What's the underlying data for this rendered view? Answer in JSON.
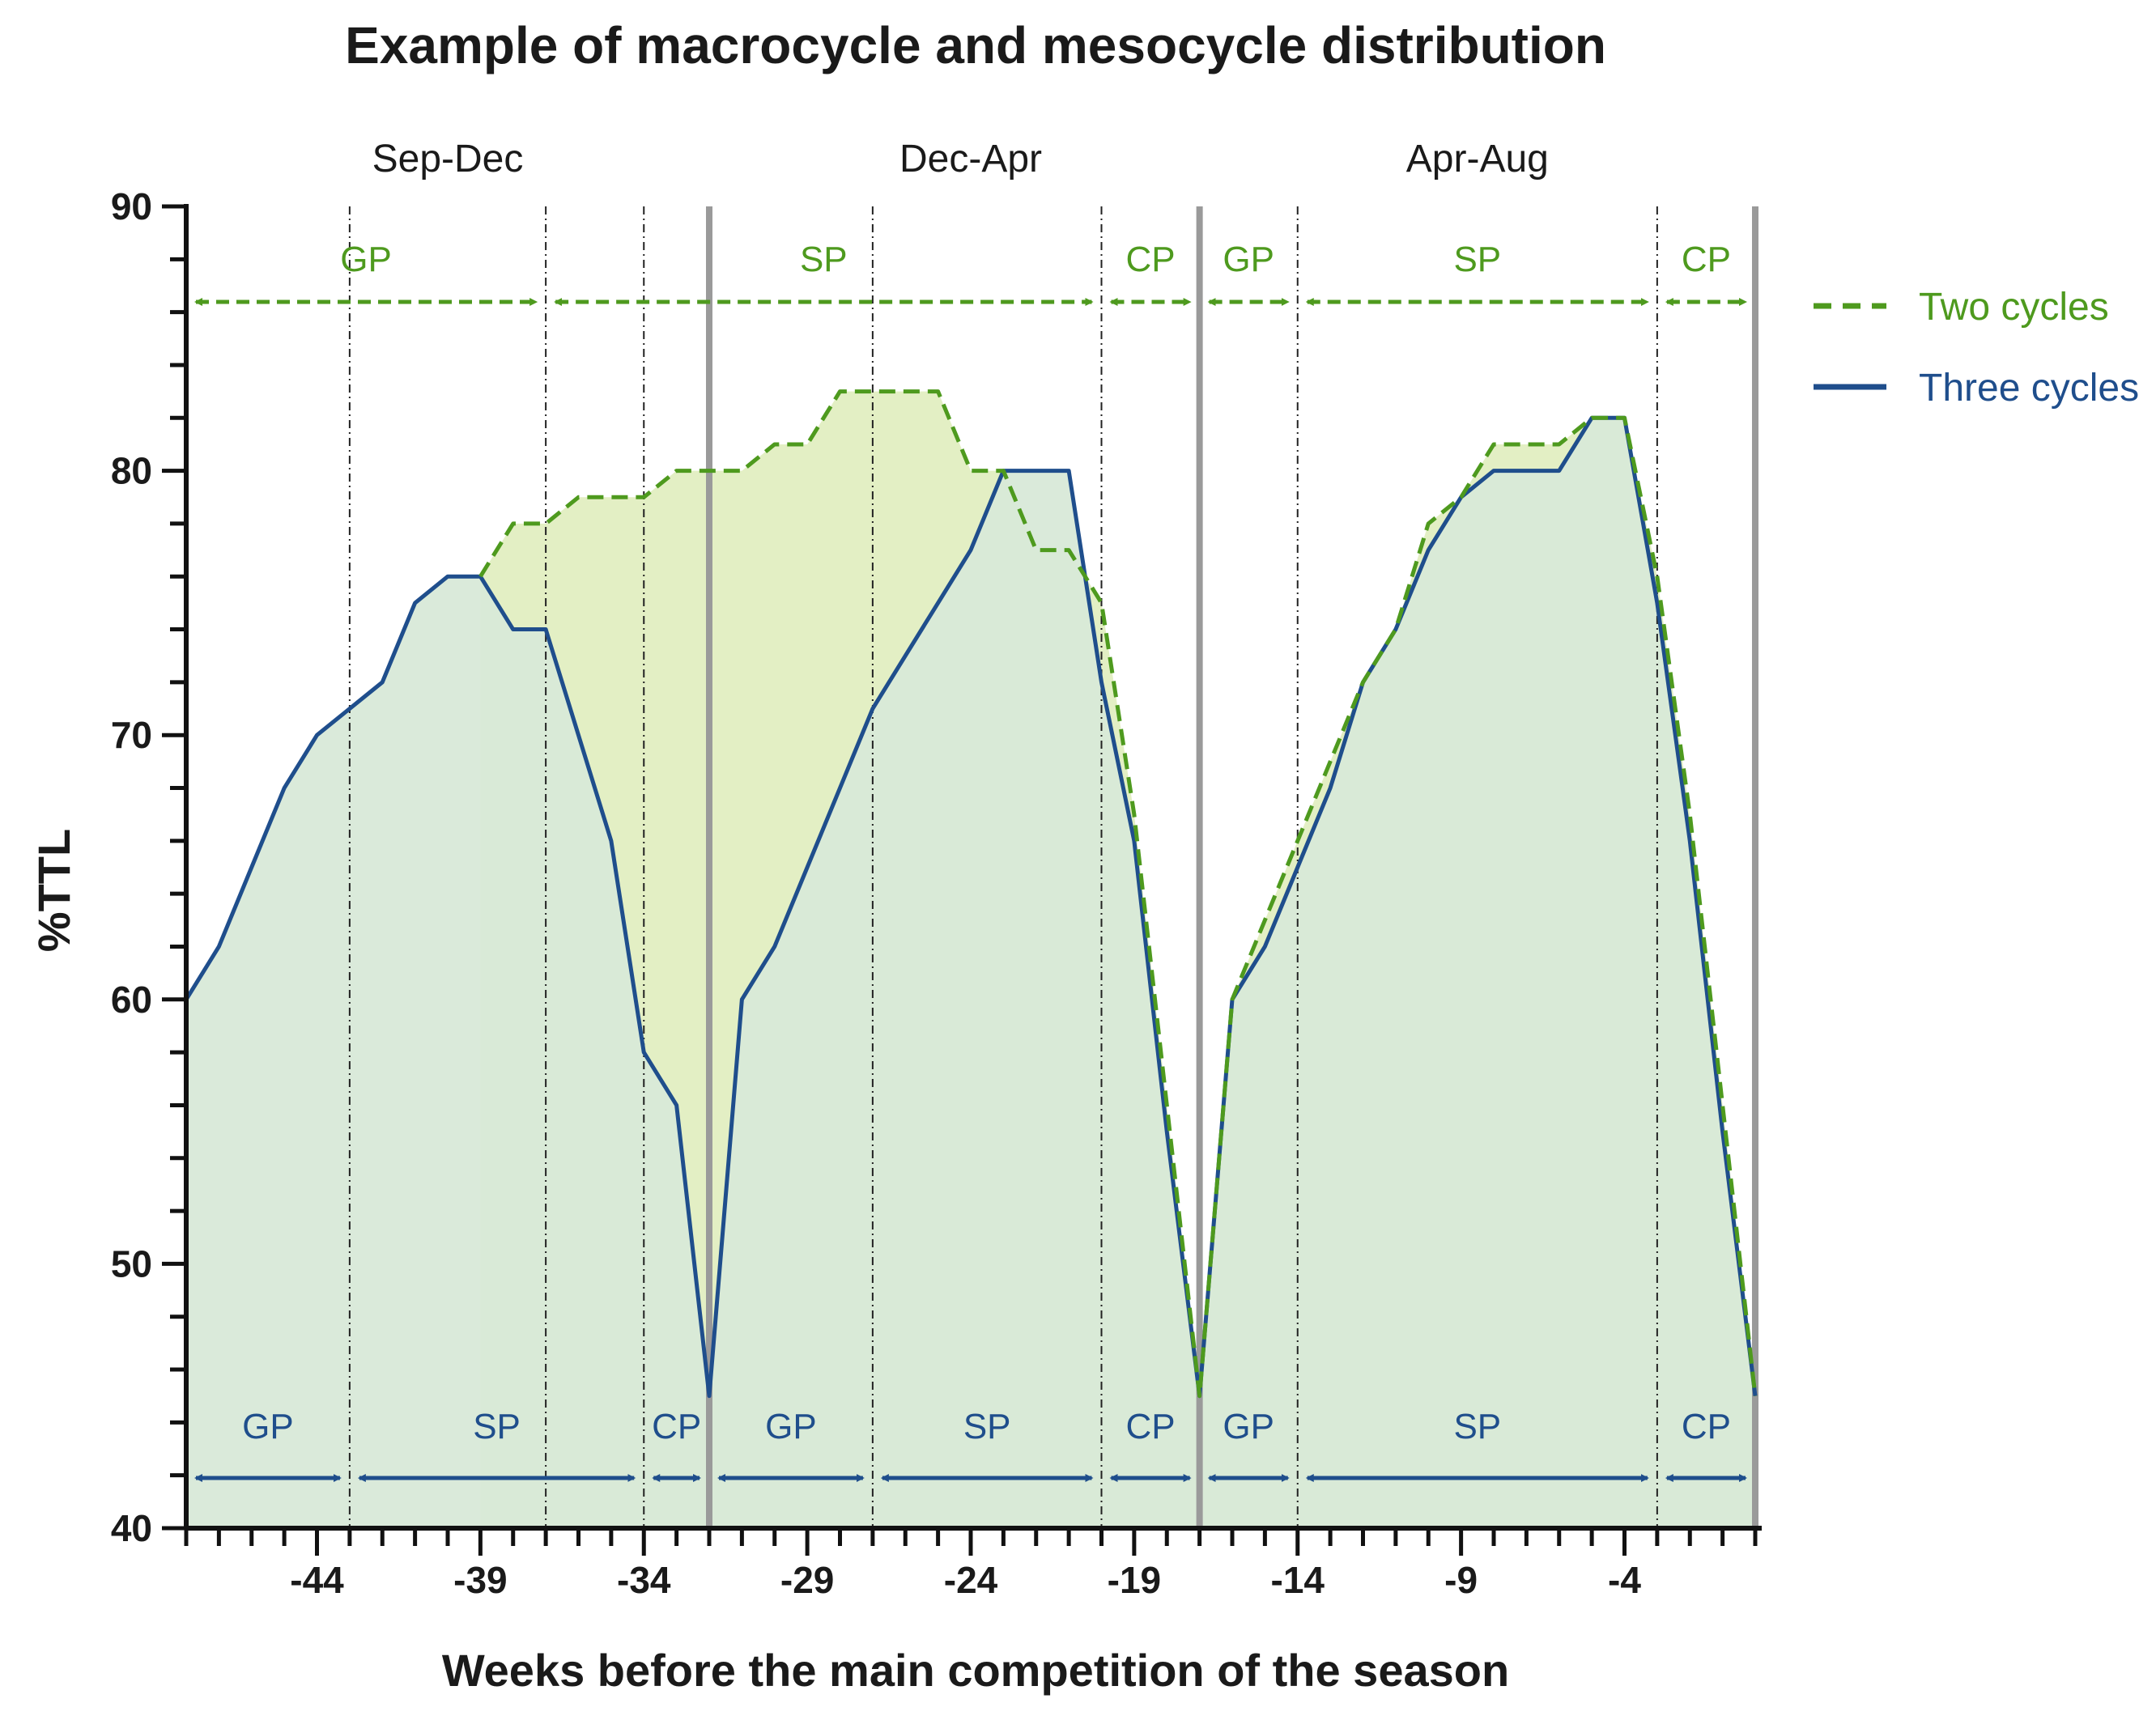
{
  "chart_data": {
    "type": "area",
    "title": "Example of macrocycle and mesocycle distribution",
    "xlabel": "Weeks before the main competition of the season",
    "ylabel": "%TTL",
    "xlim": [
      -48,
      0
    ],
    "ylim": [
      40,
      90
    ],
    "x_ticks": [
      -44,
      -39,
      -34,
      -29,
      -24,
      -19,
      -14,
      -9,
      -4
    ],
    "y_ticks": [
      40,
      50,
      60,
      70,
      80,
      90
    ],
    "season_boundaries": [
      -32,
      -17,
      0
    ],
    "phase_boundaries_dashed": [
      -43,
      -37,
      -34,
      -27,
      -20,
      -14,
      -3
    ],
    "season_labels": [
      {
        "label": "Sep-Dec",
        "x": -40
      },
      {
        "label": "Dec-Apr",
        "x": -24
      },
      {
        "label": "Apr-Aug",
        "x": -8.5
      }
    ],
    "series": [
      {
        "name": "Two cycles",
        "style": "dashed",
        "color": "#4e9a1e",
        "fill": "#e3efc4",
        "x": [
          -39,
          -38,
          -37,
          -36,
          -35,
          -34,
          -33,
          -32,
          -31,
          -30,
          -29,
          -28,
          -27,
          -26,
          -25,
          -24,
          -23,
          -22,
          -21,
          -20,
          -19,
          -18,
          -17,
          -16,
          -15,
          -14,
          -13,
          -12,
          -11,
          -10,
          -9,
          -8,
          -7,
          -6,
          -5,
          -4,
          -3,
          -2,
          -1,
          0
        ],
        "values": [
          76,
          78,
          78,
          79,
          79,
          79,
          80,
          80,
          80,
          81,
          81,
          83,
          83,
          83,
          83,
          80,
          80,
          77,
          77,
          75,
          67,
          56,
          45,
          60,
          63,
          66,
          69,
          72,
          74,
          78,
          79,
          81,
          81,
          81,
          82,
          82,
          76,
          67,
          56,
          45
        ]
      },
      {
        "name": "Three cycles",
        "style": "solid",
        "color": "#1f4e8c",
        "fill": "#d8e9d8",
        "x": [
          -48,
          -47,
          -46,
          -45,
          -44,
          -43,
          -42,
          -41,
          -40,
          -39,
          -38,
          -37,
          -36,
          -35,
          -34,
          -33,
          -32,
          -31,
          -30,
          -29,
          -28,
          -27,
          -26,
          -25,
          -24,
          -23,
          -22,
          -21,
          -20,
          -19,
          -18,
          -17,
          -16,
          -15,
          -14,
          -13,
          -12,
          -11,
          -10,
          -9,
          -8,
          -7,
          -6,
          -5,
          -4,
          -3,
          -2,
          -1,
          0
        ],
        "values": [
          60,
          62,
          65,
          68,
          70,
          71,
          72,
          75,
          76,
          76,
          74,
          74,
          70,
          66,
          58,
          56,
          45,
          60,
          62,
          65,
          68,
          71,
          73,
          75,
          77,
          80,
          80,
          80,
          72,
          66,
          55,
          45,
          60,
          62,
          65,
          68,
          72,
          74,
          77,
          79,
          80,
          80,
          80,
          82,
          82,
          75,
          66,
          55,
          45
        ]
      }
    ],
    "top_arrows": [
      {
        "label": "GP",
        "from": -48,
        "to": -37
      },
      {
        "label": "SP",
        "from": -37,
        "to": -20
      },
      {
        "label": "CP",
        "from": -20,
        "to": -17
      },
      {
        "label": "GP",
        "from": -17,
        "to": -14
      },
      {
        "label": "SP",
        "from": -14,
        "to": -3
      },
      {
        "label": "CP",
        "from": -3,
        "to": 0
      }
    ],
    "bottom_arrows": [
      {
        "label": "GP",
        "from": -48,
        "to": -43
      },
      {
        "label": "SP",
        "from": -43,
        "to": -34
      },
      {
        "label": "CP",
        "from": -34,
        "to": -32
      },
      {
        "label": "GP",
        "from": -32,
        "to": -27
      },
      {
        "label": "SP",
        "from": -27,
        "to": -20
      },
      {
        "label": "CP",
        "from": -20,
        "to": -17
      },
      {
        "label": "GP",
        "from": -17,
        "to": -14
      },
      {
        "label": "SP",
        "from": -14,
        "to": -3
      },
      {
        "label": "CP",
        "from": -3,
        "to": 0
      }
    ],
    "legend": [
      {
        "label": "Two cycles",
        "style": "dashed",
        "color": "#4e9a1e"
      },
      {
        "label": "Three cycles",
        "style": "solid",
        "color": "#1f4e8c"
      }
    ],
    "legend_position": "right"
  }
}
